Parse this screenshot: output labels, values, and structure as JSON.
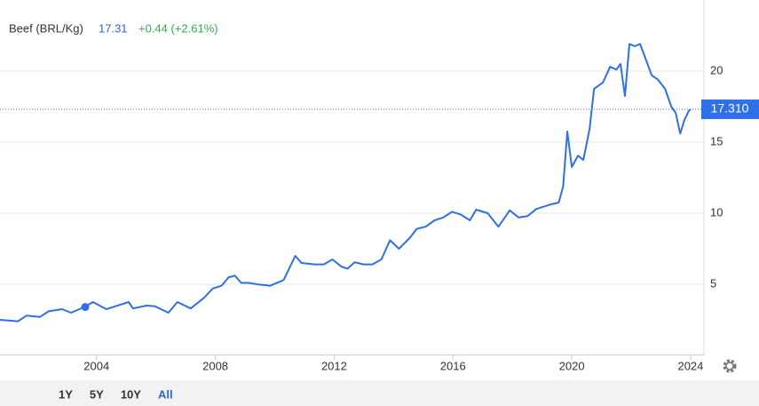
{
  "header": {
    "name": "Beef (BRL/Kg)",
    "price": "17.31",
    "change": "+0.44 (+2.61%)"
  },
  "chart_data": {
    "type": "line",
    "color": "#2f6fe8",
    "x": [
      2000.75,
      2001.35,
      2001.65,
      2002.09,
      2002.39,
      2002.84,
      2003.14,
      2003.59,
      2003.88,
      2004.33,
      2004.78,
      2005.08,
      2005.23,
      2005.68,
      2005.97,
      2006.42,
      2006.72,
      2007.17,
      2007.62,
      2007.91,
      2008.21,
      2008.45,
      2008.66,
      2008.87,
      2009.11,
      2009.41,
      2009.85,
      2010.3,
      2010.69,
      2010.9,
      2011.35,
      2011.65,
      2011.94,
      2012.24,
      2012.45,
      2012.69,
      2012.99,
      2013.29,
      2013.59,
      2013.88,
      2014.18,
      2014.54,
      2014.78,
      2015.08,
      2015.38,
      2015.67,
      2015.97,
      2016.27,
      2016.57,
      2016.78,
      2017.17,
      2017.53,
      2017.91,
      2018.21,
      2018.51,
      2018.81,
      2019.26,
      2019.56,
      2019.71,
      2019.85,
      2020.0,
      2020.21,
      2020.39,
      2020.6,
      2020.75,
      2021.05,
      2021.29,
      2021.5,
      2021.64,
      2021.79,
      2021.94,
      2022.12,
      2022.3,
      2022.48,
      2022.69,
      2022.9,
      2023.14,
      2023.35,
      2023.5,
      2023.65,
      2023.79,
      2023.94,
      2024.0
    ],
    "values": [
      2.5,
      2.4,
      2.8,
      2.7,
      3.1,
      3.25,
      3.0,
      3.4,
      3.75,
      3.25,
      3.55,
      3.75,
      3.3,
      3.5,
      3.45,
      3.0,
      3.75,
      3.3,
      4.05,
      4.7,
      4.9,
      5.5,
      5.6,
      5.1,
      5.1,
      5.0,
      4.9,
      5.3,
      7.0,
      6.5,
      6.4,
      6.4,
      6.75,
      6.25,
      6.1,
      6.55,
      6.4,
      6.4,
      6.75,
      8.1,
      7.5,
      8.25,
      8.9,
      9.05,
      9.5,
      9.7,
      10.1,
      9.9,
      9.5,
      10.25,
      10.0,
      9.05,
      10.2,
      9.7,
      9.8,
      10.3,
      10.6,
      10.75,
      11.9,
      15.75,
      13.25,
      14.05,
      13.75,
      15.95,
      18.75,
      19.2,
      20.3,
      20.1,
      20.5,
      18.25,
      21.9,
      21.75,
      21.9,
      20.9,
      19.7,
      19.4,
      18.75,
      17.5,
      17.05,
      15.6,
      16.55,
      17.2,
      17.31
    ],
    "xlim": [
      2000.75,
      2024.45
    ],
    "xticks": [
      2004,
      2008,
      2012,
      2016,
      2020,
      2024
    ],
    "ylim": [
      0,
      25
    ],
    "yticks": [
      5,
      10,
      15,
      20
    ],
    "grid": true,
    "current": {
      "value": 17.31,
      "label": "17.310"
    },
    "marker": {
      "x": 2003.62,
      "y": 3.4
    }
  },
  "range_buttons": [
    "1Y",
    "5Y",
    "10Y",
    "All"
  ],
  "active_range": "All"
}
